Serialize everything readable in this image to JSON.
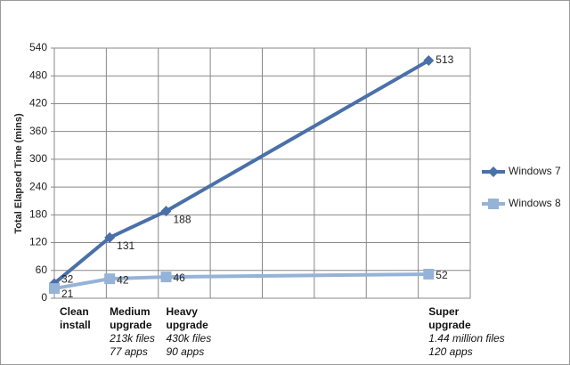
{
  "chart_data": {
    "type": "line",
    "y_label": "Total Elapsed Time (mins)",
    "x": [
      0,
      213,
      430,
      1440
    ],
    "categories": [
      "Clean install",
      "Medium upgrade",
      "Heavy upgrade",
      "Super upgrade"
    ],
    "category_details": [
      [],
      [
        "213k files",
        "77 apps"
      ],
      [
        "430k files",
        "90 apps"
      ],
      [
        "1.44 million files",
        "120 apps"
      ]
    ],
    "series": [
      {
        "name": "Windows 7",
        "color": "#4a70a8",
        "marker": "diamond",
        "values": [
          32,
          131,
          188,
          513
        ]
      },
      {
        "name": "Windows 8",
        "color": "#95b3d7",
        "marker": "square",
        "values": [
          21,
          42,
          46,
          52
        ]
      }
    ],
    "xlim": [
      0,
      1600
    ],
    "xticks": [
      0,
      200,
      400,
      600,
      800,
      1000,
      1200,
      1400,
      1600
    ],
    "ylim": [
      0,
      540
    ],
    "yticks": [
      0,
      60,
      120,
      180,
      240,
      300,
      360,
      420,
      480,
      540
    ],
    "grid": true,
    "legend": "right"
  }
}
